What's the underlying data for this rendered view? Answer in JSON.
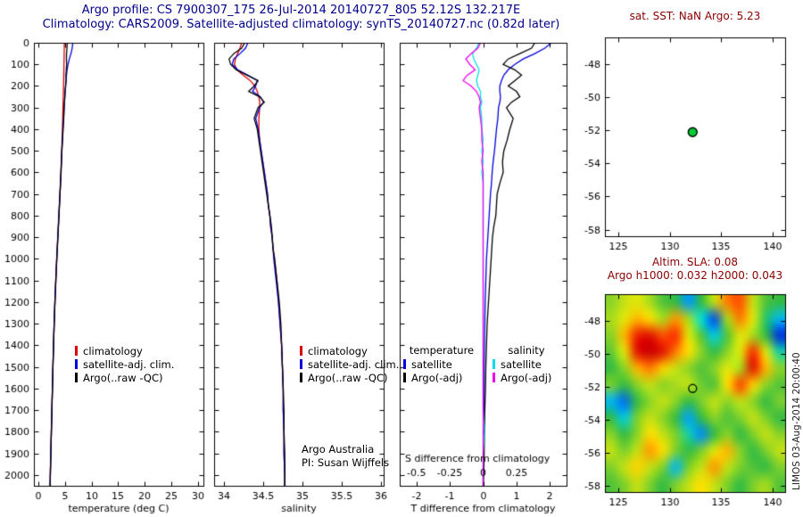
{
  "header": {
    "line1": "Argo profile: CS 7900307_175 26-Jul-2014 20140727_805 52.12S 132.217E",
    "line2": "Climatology: CARS2009. Satellite-adjusted climatology: synTS_20140727.nc (0.82d later)"
  },
  "right_panel": {
    "sst_title": "sat. SST: NaN Argo: 5.23",
    "sla_line1": "Altim. SLA: 0.08",
    "sla_line2": "Argo h1000: 0.032 h2000: 0.043",
    "timestamp": "LIMOS 03-Aug-2014 20:00:40"
  },
  "legend_profile": {
    "items": [
      {
        "label": "climatology",
        "color": "#dd0000"
      },
      {
        "label": "satellite-adj. clim.",
        "color": "#0000dd"
      },
      {
        "label": "Argo(..raw -QC)",
        "color": "#000000"
      }
    ]
  },
  "legend_diff": {
    "temperature_header": "temperature",
    "salinity_header": "salinity",
    "temp_items": [
      {
        "label": "satellite",
        "color": "#0000dd"
      },
      {
        "label": "Argo(-adj)",
        "color": "#000000"
      }
    ],
    "sal_items": [
      {
        "label": "satellite",
        "color": "#00dde8"
      },
      {
        "label": "Argo(-adj)",
        "color": "#ee00ee"
      }
    ]
  },
  "credits": {
    "line1": "Argo Australia",
    "line2": "PI: Susan Wijffels"
  },
  "chart_data": [
    {
      "id": "temp",
      "type": "line",
      "xlabel": "temperature (deg C)",
      "xlim": [
        -0.8,
        31
      ],
      "ylim": [
        2050,
        0
      ],
      "xticks": [
        0,
        5,
        10,
        15,
        20,
        25,
        30
      ],
      "yticks": [
        0,
        100,
        200,
        300,
        400,
        500,
        600,
        700,
        800,
        900,
        1000,
        1100,
        1200,
        1300,
        1400,
        1500,
        1600,
        1700,
        1800,
        1900,
        2000
      ],
      "ytick_labels": true,
      "depths": [
        0,
        25,
        50,
        75,
        100,
        125,
        150,
        175,
        200,
        225,
        250,
        275,
        300,
        350,
        400,
        450,
        500,
        550,
        600,
        650,
        700,
        750,
        800,
        850,
        900,
        950,
        1000,
        1100,
        1200,
        1300,
        1400,
        1500,
        1600,
        1700,
        1800,
        1900,
        2000,
        2050
      ],
      "series": [
        {
          "name": "climatology",
          "color": "#dd0000",
          "values": [
            4.9,
            4.9,
            4.88,
            4.86,
            4.84,
            4.82,
            4.8,
            4.78,
            4.76,
            4.73,
            4.7,
            4.68,
            4.65,
            4.6,
            4.55,
            4.48,
            4.42,
            4.34,
            4.26,
            4.17,
            4.08,
            3.98,
            3.88,
            3.78,
            3.68,
            3.58,
            3.48,
            3.3,
            3.14,
            3.0,
            2.88,
            2.77,
            2.67,
            2.57,
            2.47,
            2.37,
            2.28,
            2.24
          ]
        },
        {
          "name": "satellite-adj. clim.",
          "color": "#0000dd",
          "values": [
            6.5,
            6.38,
            6.15,
            5.85,
            5.6,
            5.42,
            5.3,
            5.22,
            5.14,
            5.06,
            5.0,
            4.94,
            4.88,
            4.76,
            4.64,
            4.55,
            4.45,
            4.36,
            4.27,
            4.18,
            4.08,
            3.98,
            3.88,
            3.78,
            3.68,
            3.58,
            3.48,
            3.3,
            3.14,
            3.0,
            2.88,
            2.77,
            2.67,
            2.57,
            2.47,
            2.37,
            2.28,
            2.24
          ]
        },
        {
          "name": "Argo(..raw -QC)",
          "color": "#000000",
          "values": [
            5.45,
            5.4,
            5.32,
            5.3,
            5.35,
            5.28,
            5.2,
            5.25,
            5.15,
            5.05,
            5.0,
            4.92,
            4.86,
            4.8,
            4.68,
            4.56,
            4.44,
            4.36,
            4.3,
            4.2,
            4.1,
            4.0,
            3.9,
            3.8,
            3.7,
            3.6,
            3.5,
            3.32,
            3.15,
            3.0,
            2.88,
            2.77,
            2.67,
            2.57,
            2.47,
            2.37,
            2.28,
            2.24
          ]
        }
      ]
    },
    {
      "id": "sal",
      "type": "line",
      "xlabel": "salinity",
      "xlim": [
        33.87,
        36.03
      ],
      "ylim": [
        2050,
        0
      ],
      "xticks": [
        34,
        34.5,
        35,
        35.5,
        36
      ],
      "yticks": [
        0,
        100,
        200,
        300,
        400,
        500,
        600,
        700,
        800,
        900,
        1000,
        1100,
        1200,
        1300,
        1400,
        1500,
        1600,
        1700,
        1800,
        1900,
        2000
      ],
      "ytick_labels": false,
      "depths": [
        0,
        25,
        50,
        75,
        100,
        125,
        150,
        175,
        200,
        225,
        250,
        275,
        300,
        350,
        400,
        450,
        500,
        550,
        600,
        650,
        700,
        750,
        800,
        850,
        900,
        950,
        1000,
        1100,
        1200,
        1300,
        1400,
        1500,
        1600,
        1700,
        1800,
        1900,
        2000,
        2050
      ],
      "series": [
        {
          "name": "climatology",
          "color": "#dd0000",
          "values": [
            34.22,
            34.2,
            34.17,
            34.14,
            34.13,
            34.16,
            34.24,
            34.33,
            34.39,
            34.42,
            34.44,
            34.45,
            34.45,
            34.44,
            34.44,
            34.45,
            34.47,
            34.49,
            34.51,
            34.53,
            34.55,
            34.56,
            34.58,
            34.59,
            34.61,
            34.62,
            34.64,
            34.67,
            34.69,
            34.71,
            34.73,
            34.74,
            34.75,
            34.75,
            34.76,
            34.76,
            34.77,
            34.77
          ]
        },
        {
          "name": "satellite-adj. clim.",
          "color": "#0000dd",
          "values": [
            34.3,
            34.27,
            34.2,
            34.12,
            34.1,
            34.17,
            34.3,
            34.42,
            34.4,
            34.36,
            34.46,
            34.5,
            34.45,
            34.4,
            34.43,
            34.45,
            34.47,
            34.49,
            34.51,
            34.53,
            34.55,
            34.56,
            34.58,
            34.59,
            34.61,
            34.62,
            34.63,
            34.66,
            34.69,
            34.71,
            34.73,
            34.74,
            34.75,
            34.75,
            34.76,
            34.76,
            34.77,
            34.77
          ]
        },
        {
          "name": "Argo(..raw -QC)",
          "color": "#000000",
          "values": [
            34.26,
            34.22,
            34.12,
            34.06,
            34.08,
            34.15,
            34.29,
            34.43,
            34.38,
            34.31,
            34.45,
            34.51,
            34.43,
            34.38,
            34.42,
            34.44,
            34.46,
            34.48,
            34.5,
            34.52,
            34.54,
            34.56,
            34.58,
            34.6,
            34.61,
            34.62,
            34.64,
            34.67,
            34.7,
            34.72,
            34.73,
            34.74,
            34.75,
            34.76,
            34.76,
            34.77,
            34.77,
            34.77
          ]
        }
      ]
    },
    {
      "id": "tdiff",
      "type": "line",
      "xlabel": "T difference from climatology",
      "xlim": [
        -2.5,
        2.5
      ],
      "ylim": [
        2050,
        0
      ],
      "xticks": [
        -2,
        -1,
        0,
        1,
        2
      ],
      "yticks": [
        0,
        100,
        200,
        300,
        400,
        500,
        600,
        700,
        800,
        900,
        1000,
        1100,
        1200,
        1300,
        1400,
        1500,
        1600,
        1700,
        1800,
        1900,
        2000
      ],
      "ytick_labels": false,
      "s_axis_label": "S difference from climatology",
      "s_ticks": [
        -0.5,
        -0.25,
        0,
        0.25
      ],
      "s_scale": 4,
      "depths": [
        0,
        25,
        50,
        75,
        100,
        125,
        150,
        175,
        200,
        225,
        250,
        275,
        300,
        350,
        400,
        450,
        500,
        550,
        600,
        650,
        700,
        750,
        800,
        850,
        900,
        950,
        1000,
        1100,
        1200,
        1300,
        1400,
        1500,
        1600,
        1700,
        1800,
        1900,
        2000,
        2050
      ],
      "series": [
        {
          "name": "T satellite",
          "color": "#0000dd",
          "values": [
            2.05,
            1.85,
            1.55,
            1.2,
            0.95,
            0.75,
            0.62,
            0.55,
            0.5,
            0.5,
            0.52,
            0.5,
            0.46,
            0.44,
            0.4,
            0.37,
            0.34,
            0.3,
            0.27,
            0.25,
            0.22,
            0.2,
            0.18,
            0.16,
            0.14,
            0.12,
            0.1,
            0.08,
            0.06,
            0.05,
            0.04,
            0.03,
            0.03,
            0.02,
            0.02,
            0.01,
            0.0,
            0.0
          ]
        },
        {
          "name": "T Argo(-adj)",
          "color": "#000000",
          "values": [
            1.55,
            1.45,
            1.1,
            0.75,
            0.6,
            0.95,
            1.15,
            0.95,
            0.75,
            1.0,
            1.1,
            0.85,
            0.7,
            0.9,
            0.8,
            0.72,
            0.62,
            0.58,
            0.6,
            0.5,
            0.42,
            0.4,
            0.38,
            0.32,
            0.28,
            0.26,
            0.24,
            0.2,
            0.16,
            0.12,
            0.1,
            0.08,
            0.07,
            0.05,
            0.04,
            0.03,
            0.02,
            0.0
          ]
        },
        {
          "name": "S satellite",
          "color": "#00dde8",
          "scale": 4,
          "values": [
            -0.03,
            -0.05,
            -0.08,
            -0.07,
            -0.05,
            -0.03,
            -0.04,
            -0.05,
            -0.04,
            -0.02,
            -0.02,
            -0.01,
            -0.02,
            -0.01,
            -0.01,
            0.0,
            -0.01,
            0.0,
            -0.01,
            0.0,
            0.0,
            0.0,
            0.0,
            0.0,
            0.0,
            0.0,
            0.0,
            0.0,
            0.0,
            0.0,
            0.0,
            0.0,
            0.0,
            0.0,
            0.01,
            0.0,
            0.0,
            0.0
          ]
        },
        {
          "name": "S Argo(-adj)",
          "color": "#ee00ee",
          "scale": 4,
          "values": [
            -0.02,
            -0.04,
            -0.09,
            -0.13,
            -0.1,
            -0.06,
            -0.12,
            -0.15,
            -0.09,
            -0.05,
            -0.03,
            -0.02,
            -0.03,
            -0.02,
            -0.01,
            -0.01,
            0.0,
            -0.01,
            0.0,
            0.0,
            0.0,
            0.0,
            0.0,
            0.0,
            0.0,
            0.0,
            0.0,
            0.0,
            0.0,
            0.0,
            0.0,
            0.0,
            0.0,
            0.0,
            0.0,
            0.0,
            0.0,
            0.0
          ]
        }
      ]
    },
    {
      "id": "map",
      "type": "scatter",
      "xlim": [
        123.7,
        141.2
      ],
      "ylim": [
        -58.4,
        -46.4
      ],
      "xticks": [
        125,
        130,
        135,
        140
      ],
      "yticks": [
        -48,
        -50,
        -52,
        -54,
        -56,
        -58
      ],
      "ytick_labels": true,
      "marker": {
        "lon": 132.217,
        "lat": -52.12,
        "fill": "#00cc33",
        "edge": "#000000",
        "r": 5
      }
    },
    {
      "id": "sla",
      "type": "heatmap",
      "xlim": [
        123.7,
        141.2
      ],
      "ylim": [
        -58.4,
        -46.4
      ],
      "xticks": [
        125,
        130,
        135,
        140
      ],
      "yticks": [
        -48,
        -50,
        -52,
        -54,
        -56,
        -58
      ],
      "ytick_labels": true,
      "marker": {
        "lon": 132.217,
        "lat": -52.12,
        "edge": "#002200",
        "r": 4.5
      },
      "colormap": [
        [
          -0.25,
          "#0000cc"
        ],
        [
          -0.15,
          "#0099ff"
        ],
        [
          -0.08,
          "#00e0e0"
        ],
        [
          0,
          "#33bb44"
        ],
        [
          0.07,
          "#99d822"
        ],
        [
          0.14,
          "#ffee00"
        ],
        [
          0.2,
          "#ff9900"
        ],
        [
          0.27,
          "#ff3300"
        ],
        [
          0.35,
          "#cc0000"
        ]
      ],
      "grid": [
        [
          0.06,
          0.1,
          0.12,
          0.08,
          0.02,
          0.0,
          -0.15,
          0.0,
          0.1,
          0.22,
          0.25,
          0.1,
          0.02,
          0.0
        ],
        [
          0.08,
          0.12,
          0.18,
          0.15,
          0.08,
          0.2,
          0.08,
          -0.08,
          -0.2,
          0.08,
          0.22,
          0.12,
          -0.02,
          -0.12
        ],
        [
          0.06,
          0.18,
          0.3,
          0.32,
          0.25,
          0.28,
          0.12,
          0.02,
          -0.1,
          0.02,
          0.12,
          0.08,
          0.0,
          -0.22
        ],
        [
          0.03,
          0.12,
          0.32,
          0.36,
          0.32,
          0.22,
          0.15,
          0.06,
          0.0,
          0.06,
          0.12,
          0.28,
          0.12,
          -0.05
        ],
        [
          0.0,
          0.06,
          0.18,
          0.22,
          0.16,
          0.1,
          0.06,
          0.02,
          0.06,
          0.12,
          0.08,
          0.32,
          0.18,
          0.06
        ],
        [
          0.05,
          0.0,
          0.06,
          0.1,
          0.06,
          0.08,
          0.1,
          0.04,
          0.02,
          0.15,
          0.26,
          0.16,
          0.06,
          0.02
        ],
        [
          -0.12,
          -0.18,
          0.0,
          0.06,
          0.1,
          0.06,
          0.0,
          0.05,
          0.1,
          0.06,
          0.1,
          0.06,
          0.0,
          0.05
        ],
        [
          0.0,
          -0.1,
          0.05,
          0.1,
          0.06,
          0.0,
          -0.14,
          0.0,
          0.06,
          0.02,
          0.05,
          0.1,
          0.05,
          0.0
        ],
        [
          0.06,
          0.0,
          0.06,
          0.15,
          0.1,
          0.05,
          -0.05,
          -0.16,
          0.0,
          0.06,
          0.0,
          0.05,
          0.1,
          0.06
        ],
        [
          0.1,
          0.05,
          0.1,
          0.2,
          0.15,
          0.05,
          0.0,
          0.05,
          0.12,
          0.18,
          0.06,
          0.0,
          0.05,
          0.1
        ],
        [
          0.05,
          0.1,
          0.16,
          0.1,
          0.05,
          -0.12,
          0.05,
          0.1,
          0.2,
          0.1,
          0.05,
          0.02,
          0.0,
          0.05
        ],
        [
          0.02,
          0.05,
          0.1,
          0.05,
          0.0,
          0.05,
          0.1,
          0.15,
          0.1,
          0.05,
          0.0,
          0.05,
          0.08,
          0.02
        ]
      ]
    }
  ]
}
